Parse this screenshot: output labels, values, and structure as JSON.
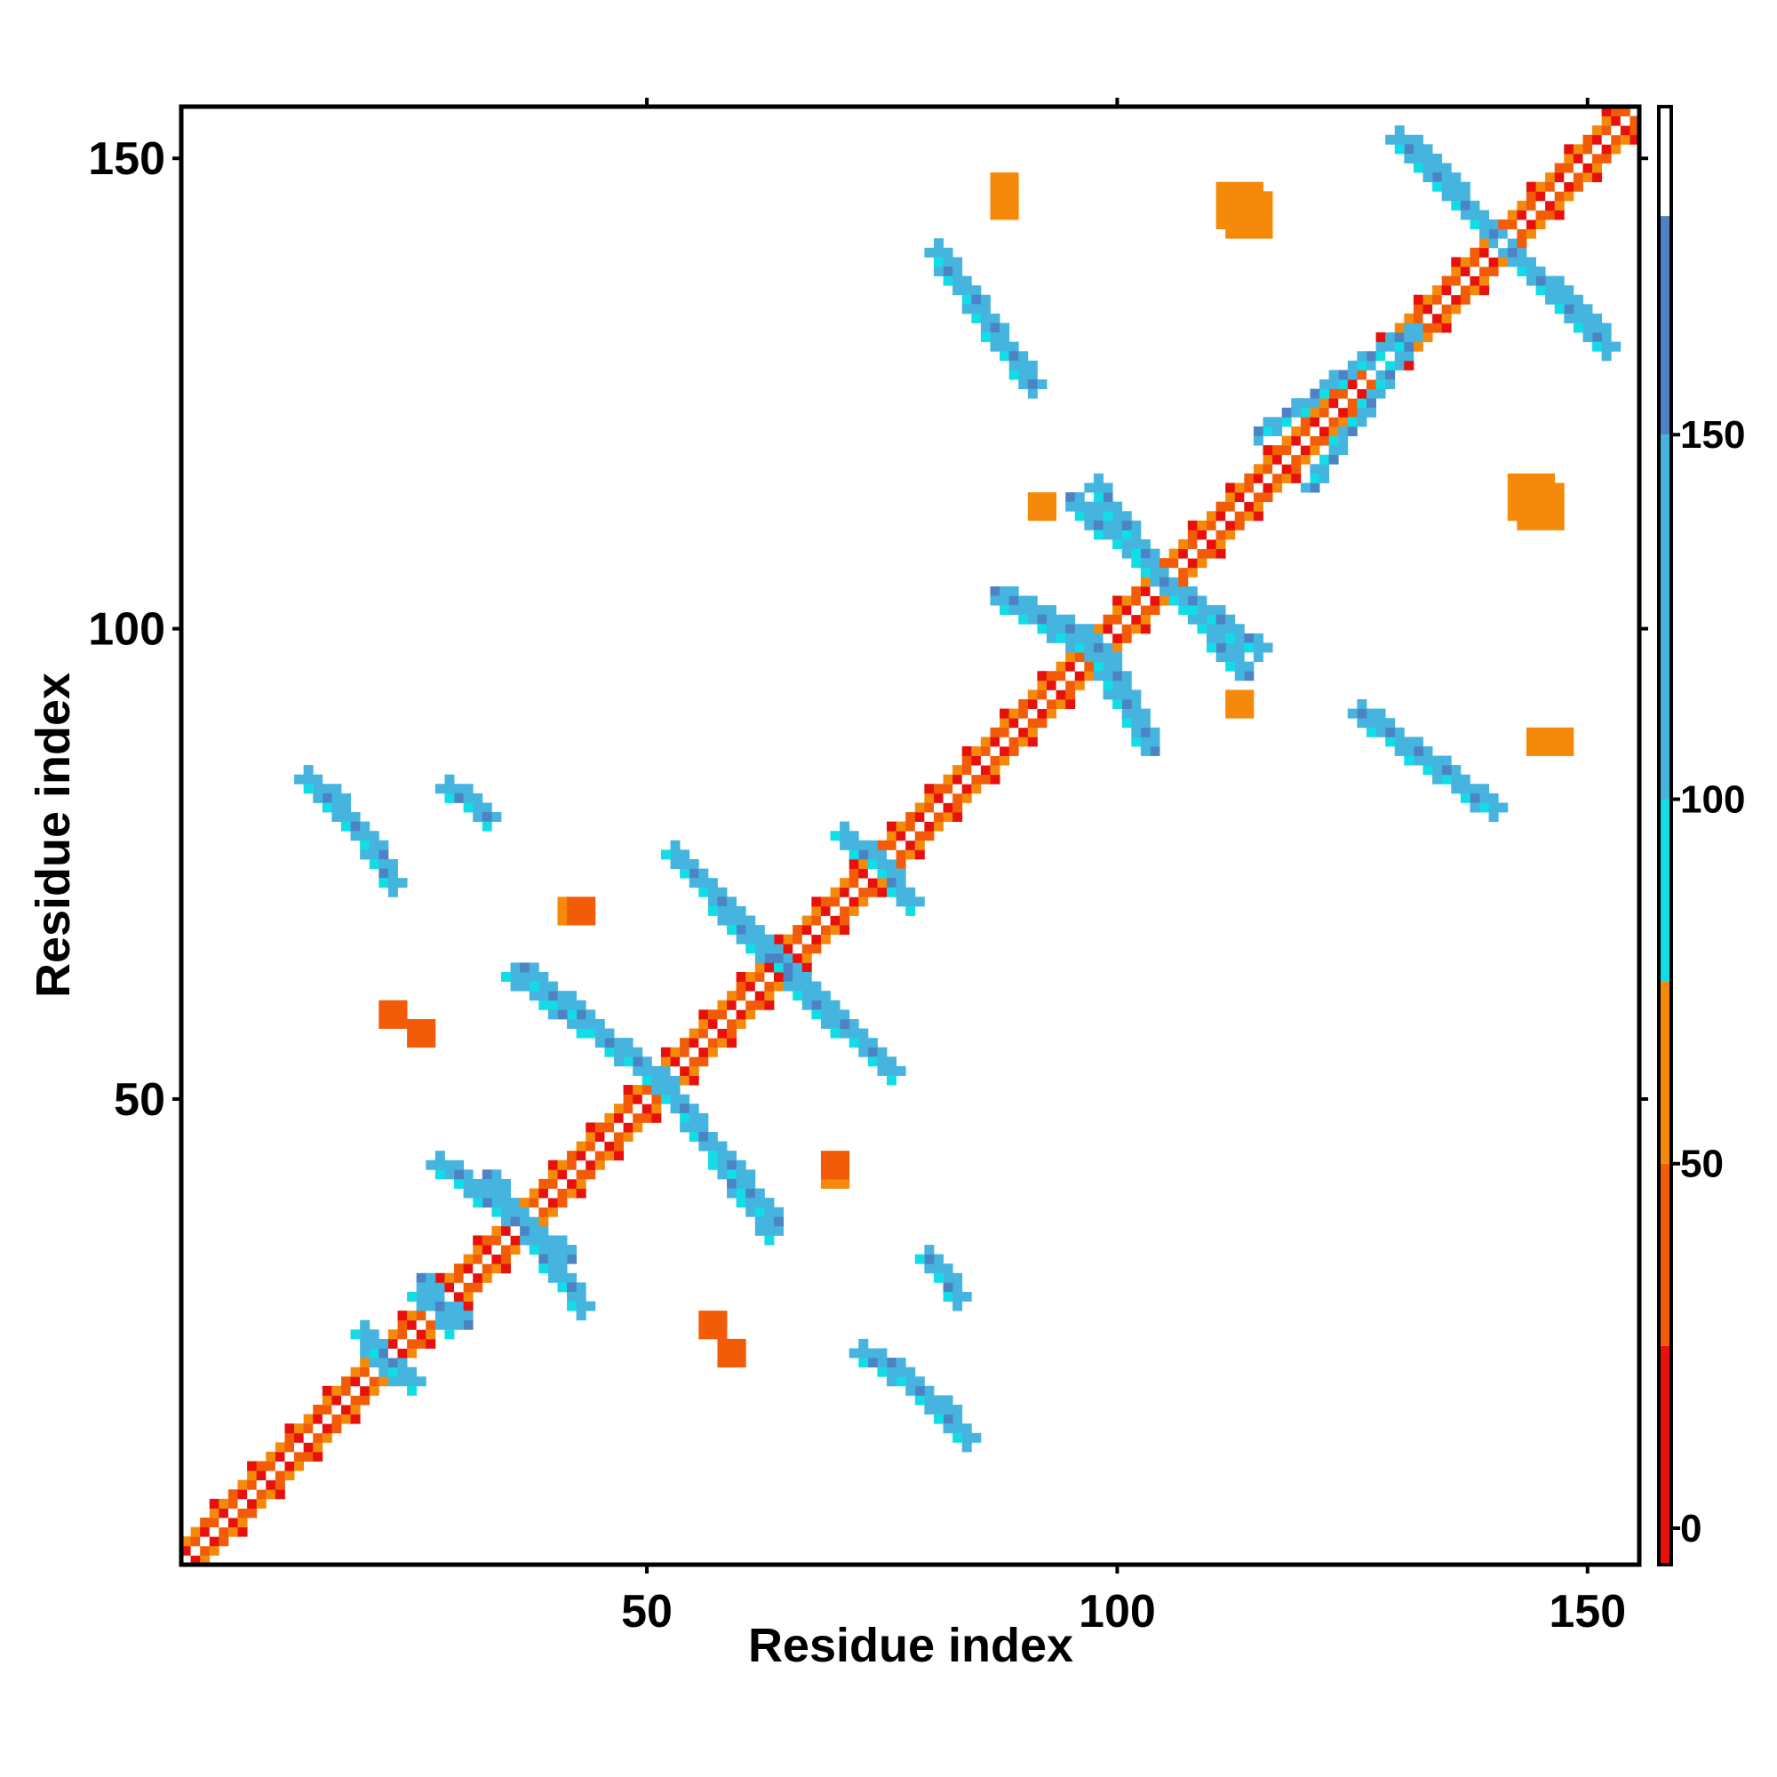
{
  "chart_data": {
    "type": "heatmap",
    "title": "",
    "xlabel": "Residue index",
    "ylabel": "Residue index",
    "xlim": [
      1,
      155
    ],
    "ylim": [
      1,
      155
    ],
    "x_ticks": [
      50,
      100,
      150
    ],
    "y_ticks": [
      50,
      100,
      150
    ],
    "grid": false,
    "colorbar": {
      "placement": "right",
      "range": [
        -5,
        195
      ],
      "ticks": [
        0,
        50,
        100,
        150
      ],
      "bands": [
        {
          "from": -5,
          "to": 25,
          "color": "#e8100a"
        },
        {
          "from": 25,
          "to": 50,
          "color": "#f25c08"
        },
        {
          "from": 50,
          "to": 75,
          "color": "#f58a0a"
        },
        {
          "from": 75,
          "to": 100,
          "color": "#12dde6"
        },
        {
          "from": 100,
          "to": 150,
          "color": "#45b4de"
        },
        {
          "from": 150,
          "to": 180,
          "color": "#4d82c4"
        },
        {
          "from": 180,
          "to": 195,
          "color": "#ffffff"
        }
      ]
    },
    "features": [
      {
        "kind": "diagonal",
        "from": 1,
        "to": 154
      },
      {
        "kind": "band",
        "x1": 33,
        "y1": 42,
        "x2": 43,
        "y2": 28,
        "value": 140
      },
      {
        "kind": "band",
        "x1": 51,
        "y1": 53,
        "x2": 63,
        "y2": 36,
        "value": 140
      },
      {
        "kind": "band",
        "x1": 37,
        "y1": 64,
        "x2": 51,
        "y2": 52,
        "value": 140
      },
      {
        "kind": "band",
        "x1": 55,
        "y1": 74,
        "x2": 64,
        "y2": 65,
        "value": 140
      },
      {
        "kind": "band",
        "x1": 65,
        "y1": 63,
        "x2": 76,
        "y2": 53,
        "value": 140
      },
      {
        "kind": "band",
        "x1": 16,
        "y1": 83,
        "x2": 23,
        "y2": 73,
        "value": 130
      },
      {
        "kind": "band",
        "x1": 30,
        "y1": 83,
        "x2": 33,
        "y2": 80,
        "value": 130
      },
      {
        "kind": "band",
        "x1": 74,
        "y1": 76,
        "x2": 78,
        "y2": 71,
        "value": 120
      },
      {
        "kind": "band",
        "x1": 26,
        "y1": 31,
        "x2": 29,
        "y2": 26,
        "value": 130
      },
      {
        "kind": "band",
        "x1": 20,
        "y1": 24,
        "x2": 25,
        "y2": 20,
        "value": 120
      },
      {
        "kind": "band",
        "x1": 76,
        "y1": 22,
        "x2": 84,
        "y2": 14,
        "value": 140
      },
      {
        "kind": "band",
        "x1": 80,
        "y1": 33,
        "x2": 83,
        "y2": 29,
        "value": 120
      },
      {
        "kind": "band",
        "x1": 87,
        "y1": 104,
        "x2": 97,
        "y2": 98,
        "value": 140
      },
      {
        "kind": "band",
        "x1": 98,
        "y1": 98,
        "x2": 103,
        "y2": 88,
        "value": 140
      },
      {
        "kind": "band",
        "x1": 95,
        "y1": 114,
        "x2": 103,
        "y2": 107,
        "value": 140
      },
      {
        "kind": "band",
        "x1": 105,
        "y1": 105,
        "x2": 115,
        "y2": 98,
        "value": 140
      },
      {
        "kind": "band",
        "x1": 81,
        "y1": 140,
        "x2": 91,
        "y2": 126,
        "value": 140
      },
      {
        "kind": "band",
        "x1": 126,
        "y1": 91,
        "x2": 140,
        "y2": 81,
        "value": 140
      },
      {
        "kind": "band",
        "x1": 131,
        "y1": 152,
        "x2": 140,
        "y2": 142,
        "value": 140
      },
      {
        "kind": "band",
        "x1": 142,
        "y1": 140,
        "x2": 152,
        "y2": 130,
        "value": 140
      },
      {
        "kind": "band",
        "x1": 115,
        "y1": 121,
        "x2": 131,
        "y2": 132,
        "value": 110
      },
      {
        "kind": "blob",
        "x": 113,
        "y": 145,
        "r": 2,
        "value": 50
      },
      {
        "kind": "blob",
        "x": 144,
        "y": 114,
        "r": 2,
        "value": 50
      },
      {
        "kind": "blob",
        "x": 88,
        "y": 147,
        "r": 1,
        "value": 60
      },
      {
        "kind": "blob",
        "x": 145,
        "y": 88,
        "r": 1,
        "value": 60
      },
      {
        "kind": "blob",
        "x": 70,
        "y": 42,
        "r": 1,
        "value": 60
      },
      {
        "kind": "blob",
        "x": 43,
        "y": 70,
        "r": 1,
        "value": 30
      },
      {
        "kind": "blob",
        "x": 23,
        "y": 59,
        "r": 1,
        "value": 40
      },
      {
        "kind": "blob",
        "x": 57,
        "y": 26,
        "r": 1,
        "value": 30
      },
      {
        "kind": "blob",
        "x": 113,
        "y": 92,
        "r": 1,
        "value": 60
      }
    ]
  }
}
